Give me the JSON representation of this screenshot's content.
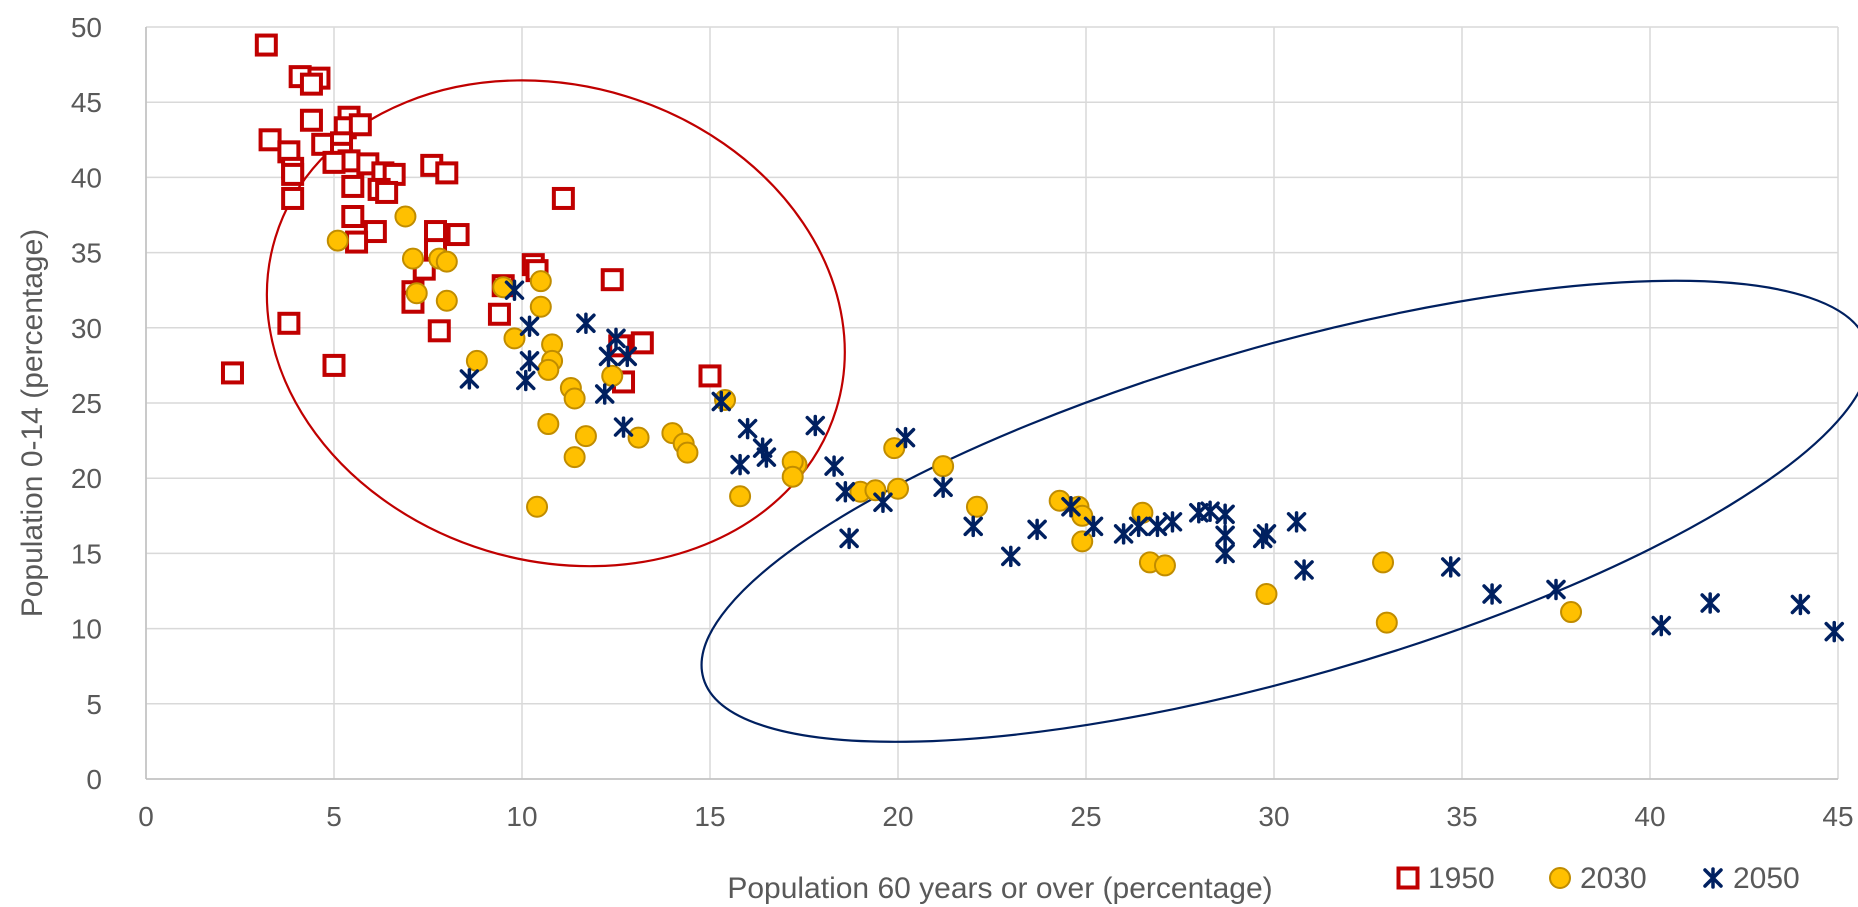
{
  "chart_data": {
    "type": "scatter",
    "title": "",
    "xlabel": "Population 60 years or over (percentage)",
    "ylabel": "Population 0-14 (percentage)",
    "xlim": [
      0,
      45
    ],
    "ylim": [
      0,
      50
    ],
    "x_ticks": [
      0,
      5,
      10,
      15,
      20,
      25,
      30,
      35,
      40,
      45
    ],
    "y_ticks": [
      0,
      5,
      10,
      15,
      20,
      25,
      30,
      35,
      40,
      45,
      50
    ],
    "grid": true,
    "legend_position": "bottom-right",
    "series": [
      {
        "name": "1950",
        "marker": "square",
        "color": "#c00000",
        "points": [
          [
            3.2,
            48.8
          ],
          [
            4.1,
            46.7
          ],
          [
            4.6,
            46.6
          ],
          [
            4.4,
            46.2
          ],
          [
            3.3,
            42.5
          ],
          [
            4.4,
            43.8
          ],
          [
            5.4,
            44.0
          ],
          [
            5.3,
            43.3
          ],
          [
            5.7,
            43.5
          ],
          [
            4.7,
            42.2
          ],
          [
            5.2,
            42.3
          ],
          [
            5.2,
            41.6
          ],
          [
            5.4,
            41.1
          ],
          [
            5.0,
            41.0
          ],
          [
            3.8,
            41.7
          ],
          [
            3.9,
            40.6
          ],
          [
            3.9,
            40.2
          ],
          [
            5.9,
            40.9
          ],
          [
            6.3,
            40.3
          ],
          [
            6.6,
            40.2
          ],
          [
            7.6,
            40.8
          ],
          [
            8.0,
            40.3
          ],
          [
            5.5,
            39.4
          ],
          [
            6.2,
            39.2
          ],
          [
            6.4,
            39.0
          ],
          [
            3.9,
            38.6
          ],
          [
            11.1,
            38.6
          ],
          [
            5.5,
            37.4
          ],
          [
            6.1,
            36.4
          ],
          [
            7.7,
            36.4
          ],
          [
            8.3,
            36.2
          ],
          [
            5.6,
            35.7
          ],
          [
            7.7,
            35.2
          ],
          [
            10.3,
            34.2
          ],
          [
            7.4,
            33.9
          ],
          [
            10.4,
            33.8
          ],
          [
            12.4,
            33.2
          ],
          [
            9.5,
            32.8
          ],
          [
            7.1,
            32.4
          ],
          [
            7.1,
            31.7
          ],
          [
            9.4,
            30.9
          ],
          [
            3.8,
            30.3
          ],
          [
            7.8,
            29.8
          ],
          [
            12.6,
            28.8
          ],
          [
            13.2,
            29.0
          ],
          [
            2.3,
            27.0
          ],
          [
            5.0,
            27.5
          ],
          [
            12.7,
            26.4
          ],
          [
            15.0,
            26.8
          ]
        ]
      },
      {
        "name": "2030",
        "marker": "circle",
        "color": "#ffc000",
        "points": [
          [
            6.9,
            37.4
          ],
          [
            5.1,
            35.8
          ],
          [
            7.1,
            34.6
          ],
          [
            7.8,
            34.6
          ],
          [
            8.0,
            34.4
          ],
          [
            10.5,
            33.1
          ],
          [
            9.5,
            32.7
          ],
          [
            7.2,
            32.3
          ],
          [
            8.0,
            31.8
          ],
          [
            10.5,
            31.4
          ],
          [
            9.8,
            29.3
          ],
          [
            10.8,
            28.9
          ],
          [
            8.8,
            27.8
          ],
          [
            10.8,
            27.8
          ],
          [
            10.7,
            27.2
          ],
          [
            12.4,
            26.8
          ],
          [
            11.3,
            26.0
          ],
          [
            11.4,
            25.3
          ],
          [
            15.4,
            25.2
          ],
          [
            10.7,
            23.6
          ],
          [
            11.7,
            22.8
          ],
          [
            13.1,
            22.7
          ],
          [
            14.0,
            23.0
          ],
          [
            14.3,
            22.3
          ],
          [
            14.4,
            21.7
          ],
          [
            11.4,
            21.4
          ],
          [
            17.3,
            20.9
          ],
          [
            17.2,
            21.1
          ],
          [
            17.2,
            20.1
          ],
          [
            19.9,
            22.0
          ],
          [
            21.2,
            20.8
          ],
          [
            15.8,
            18.8
          ],
          [
            19.0,
            19.1
          ],
          [
            19.4,
            19.2
          ],
          [
            20.0,
            19.3
          ],
          [
            10.4,
            18.1
          ],
          [
            22.1,
            18.1
          ],
          [
            24.3,
            18.5
          ],
          [
            24.8,
            18.1
          ],
          [
            24.9,
            17.5
          ],
          [
            24.9,
            15.8
          ],
          [
            26.5,
            17.7
          ],
          [
            26.7,
            14.4
          ],
          [
            27.1,
            14.2
          ],
          [
            29.8,
            12.3
          ],
          [
            32.9,
            14.4
          ],
          [
            33.0,
            10.4
          ],
          [
            37.9,
            11.1
          ]
        ]
      },
      {
        "name": "2050",
        "marker": "asterisk",
        "color": "#002060",
        "points": [
          [
            9.8,
            32.5
          ],
          [
            10.2,
            30.1
          ],
          [
            11.7,
            30.3
          ],
          [
            12.5,
            29.3
          ],
          [
            12.3,
            28.1
          ],
          [
            12.8,
            28.1
          ],
          [
            10.2,
            27.8
          ],
          [
            8.6,
            26.6
          ],
          [
            10.1,
            26.5
          ],
          [
            12.2,
            25.6
          ],
          [
            12.7,
            23.4
          ],
          [
            15.3,
            25.1
          ],
          [
            16.0,
            23.3
          ],
          [
            17.8,
            23.5
          ],
          [
            16.4,
            22.0
          ],
          [
            16.5,
            21.4
          ],
          [
            15.8,
            20.9
          ],
          [
            18.3,
            20.8
          ],
          [
            18.6,
            19.1
          ],
          [
            20.2,
            22.7
          ],
          [
            21.2,
            19.4
          ],
          [
            19.6,
            18.4
          ],
          [
            18.7,
            16.0
          ],
          [
            22.0,
            16.8
          ],
          [
            23.0,
            14.8
          ],
          [
            23.7,
            16.6
          ],
          [
            24.6,
            18.1
          ],
          [
            25.2,
            16.8
          ],
          [
            26.0,
            16.3
          ],
          [
            26.4,
            16.8
          ],
          [
            26.9,
            16.8
          ],
          [
            27.3,
            17.1
          ],
          [
            28.0,
            17.7
          ],
          [
            28.3,
            17.8
          ],
          [
            28.7,
            17.6
          ],
          [
            28.7,
            16.2
          ],
          [
            28.7,
            15.0
          ],
          [
            29.7,
            16.0
          ],
          [
            29.8,
            16.3
          ],
          [
            30.6,
            17.1
          ],
          [
            30.8,
            13.9
          ],
          [
            34.7,
            14.1
          ],
          [
            35.8,
            12.3
          ],
          [
            37.5,
            12.6
          ],
          [
            40.3,
            10.2
          ],
          [
            41.6,
            11.7
          ],
          [
            44.0,
            11.6
          ],
          [
            44.9,
            9.8
          ]
        ]
      }
    ],
    "annotations": [
      {
        "type": "ellipse",
        "color": "#c00000",
        "center": [
          10.9,
          30.3
        ],
        "rx": 7.8,
        "ry": 15.8,
        "rotation_deg": -17
      },
      {
        "type": "ellipse",
        "color": "#002060",
        "center": [
          30.3,
          17.8
        ],
        "rx": 16.1,
        "ry": 11.0,
        "rotation_deg": 16
      }
    ]
  }
}
